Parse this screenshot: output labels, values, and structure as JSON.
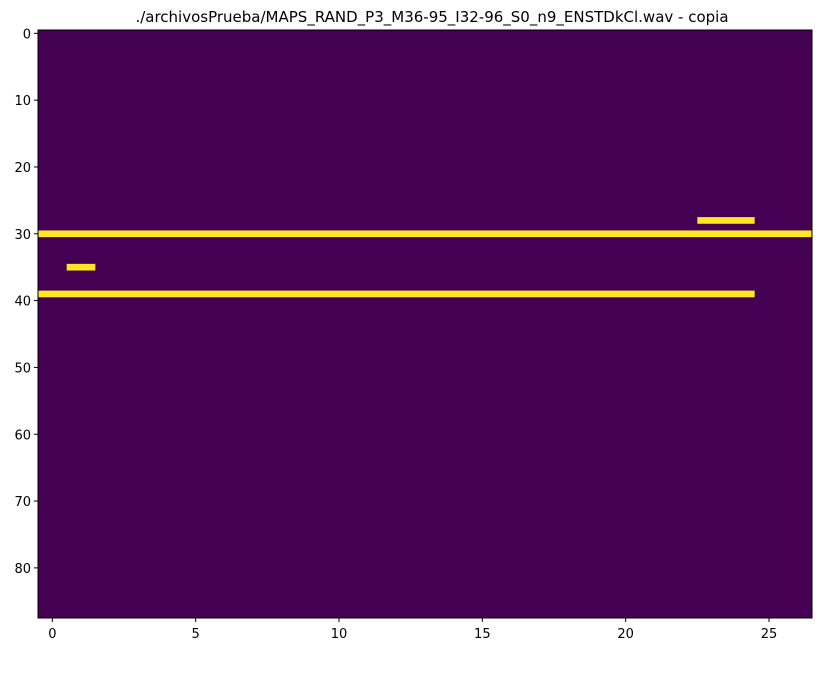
{
  "chart_data": {
    "type": "heatmap",
    "title": "./archivosPrueba/MAPS_RAND_P3_M36-95_I32-96_S0_n9_ENSTDkCl.wav - copia",
    "xlabel": "",
    "ylabel": "",
    "n_cols": 27,
    "n_rows": 88,
    "xlim": [
      -0.5,
      26.5
    ],
    "ylim": [
      87.5,
      -0.5
    ],
    "x_ticks": [
      0,
      5,
      10,
      15,
      20,
      25
    ],
    "y_ticks": [
      0,
      10,
      20,
      30,
      40,
      50,
      60,
      70,
      80
    ],
    "colormap": "viridis",
    "background_color": "#440154",
    "active_color": "#fde725",
    "active_segments": [
      {
        "row": 28,
        "col_start": 23,
        "col_end": 24
      },
      {
        "row": 30,
        "col_start": 0,
        "col_end": 26
      },
      {
        "row": 35,
        "col_start": 1,
        "col_end": 1
      },
      {
        "row": 39,
        "col_start": 0,
        "col_end": 24
      }
    ]
  }
}
